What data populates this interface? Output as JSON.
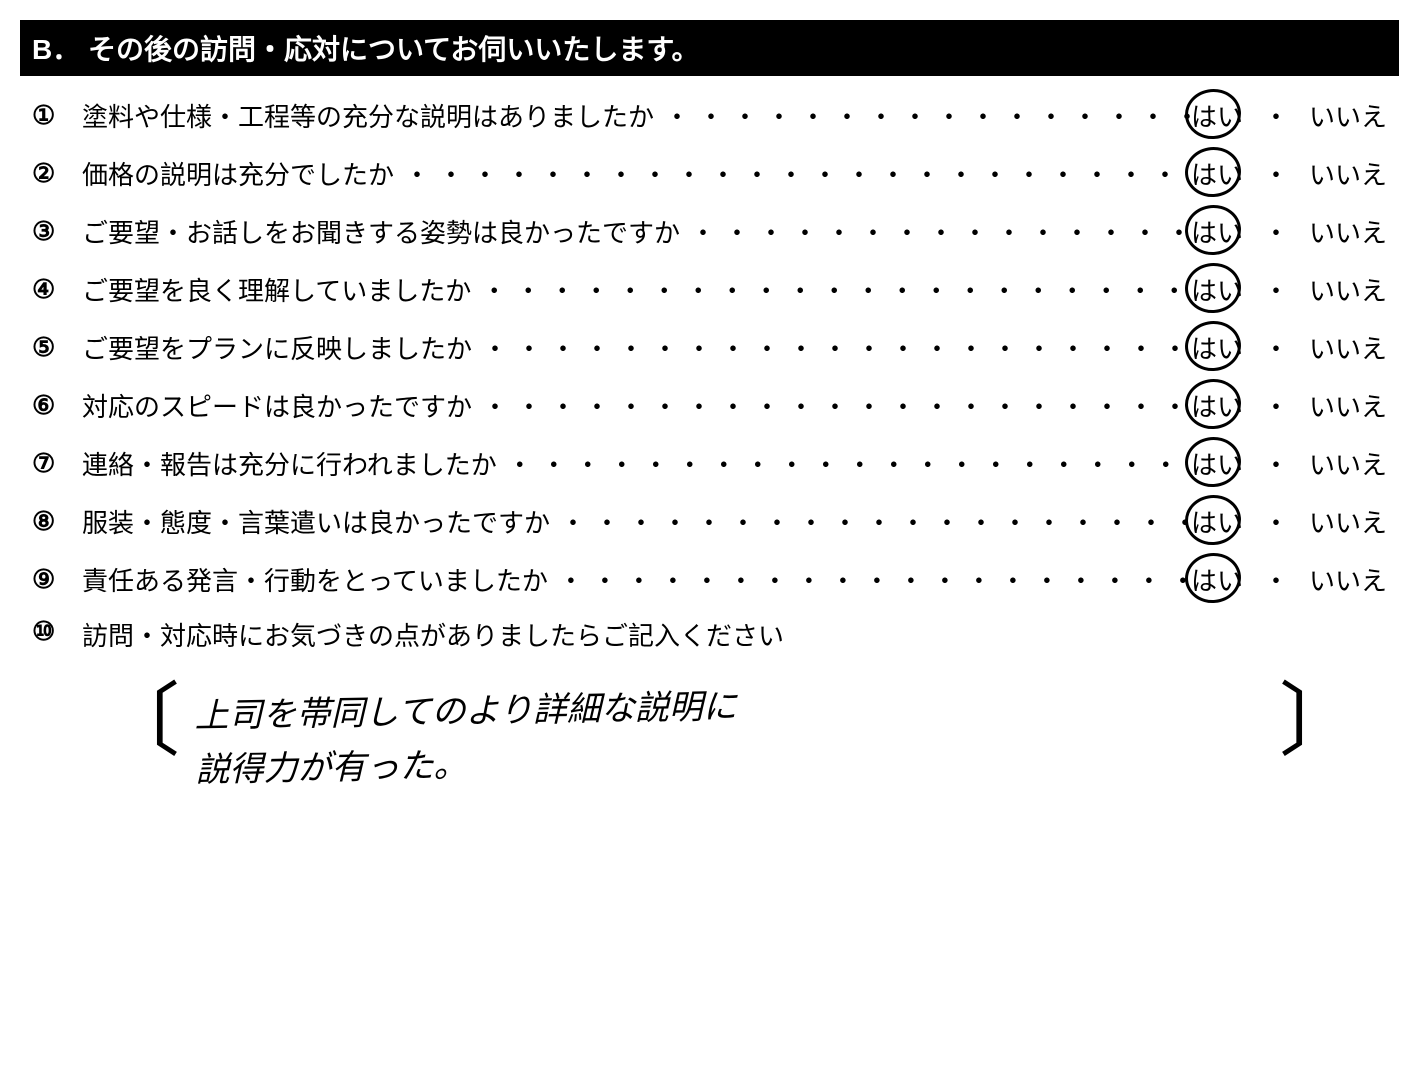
{
  "header": {
    "section_label": "B．",
    "title": "その後の訪問・応対についてお伺いいたします。"
  },
  "answers": {
    "yes": "はい",
    "no": "いいえ",
    "separator": "・"
  },
  "questions": [
    {
      "num": "①",
      "text": "塗料や仕様・工程等の充分な説明はありましたか",
      "selected": "yes"
    },
    {
      "num": "②",
      "text": "価格の説明は充分でしたか",
      "selected": "yes"
    },
    {
      "num": "③",
      "text": "ご要望・お話しをお聞きする姿勢は良かったですか",
      "selected": "yes"
    },
    {
      "num": "④",
      "text": "ご要望を良く理解していましたか",
      "selected": "yes"
    },
    {
      "num": "⑤",
      "text": "ご要望をプランに反映しましたか",
      "selected": "yes"
    },
    {
      "num": "⑥",
      "text": "対応のスピードは良かったですか",
      "selected": "yes"
    },
    {
      "num": "⑦",
      "text": "連絡・報告は充分に行われましたか",
      "selected": "yes"
    },
    {
      "num": "⑧",
      "text": "服装・態度・言葉遣いは良かったですか",
      "selected": "yes"
    },
    {
      "num": "⑨",
      "text": "責任ある発言・行動をとっていましたか",
      "selected": "yes"
    }
  ],
  "freetext": {
    "num": "⑩",
    "prompt": "訪問・対応時にお気づきの点がありましたらご記入ください",
    "handwriting": "上司を帯同してのより詳細な説明に\n説得力が有った。"
  },
  "style": {
    "header_bg": "#000000",
    "header_fg": "#ffffff",
    "body_bg": "#ffffff",
    "text_color": "#000000",
    "font_size_header": 28,
    "font_size_body": 26,
    "font_size_handwriting": 34
  }
}
